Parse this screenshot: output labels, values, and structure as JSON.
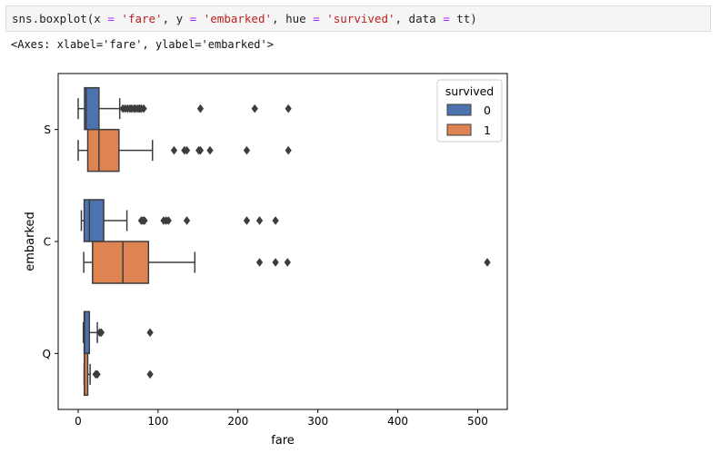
{
  "code_cell": {
    "tokens": [
      {
        "text": "sns.boxplot(x ",
        "cls": ""
      },
      {
        "text": "=",
        "cls": "op"
      },
      {
        "text": " ",
        "cls": ""
      },
      {
        "text": "'fare'",
        "cls": "str"
      },
      {
        "text": ", y ",
        "cls": ""
      },
      {
        "text": "=",
        "cls": "op"
      },
      {
        "text": " ",
        "cls": ""
      },
      {
        "text": "'embarked'",
        "cls": "str"
      },
      {
        "text": ", hue ",
        "cls": ""
      },
      {
        "text": "=",
        "cls": "op"
      },
      {
        "text": " ",
        "cls": ""
      },
      {
        "text": "'survived'",
        "cls": "str"
      },
      {
        "text": ", data ",
        "cls": ""
      },
      {
        "text": "=",
        "cls": "op"
      },
      {
        "text": " tt)",
        "cls": ""
      }
    ]
  },
  "output_text": "<Axes: xlabel='fare', ylabel='embarked'>",
  "chart_data": {
    "type": "boxplot",
    "orientation": "horizontal",
    "xlabel": "fare",
    "ylabel": "embarked",
    "xlim": [
      -25,
      537
    ],
    "xticks": [
      0,
      100,
      200,
      300,
      400,
      500
    ],
    "categories": [
      "S",
      "C",
      "Q"
    ],
    "legend": {
      "title": "survived",
      "position": "top-right"
    },
    "series": [
      {
        "name": "0",
        "color": "#4c72b0",
        "boxes": [
          {
            "category": "S",
            "whisker_low": 0,
            "q1": 8,
            "median": 10,
            "q3": 26,
            "whisker_high": 52,
            "outliers": [
              56,
              59,
              62,
              65,
              67,
              70,
              72,
              75,
              77,
              79,
              82,
              153,
              221,
              263
            ]
          },
          {
            "category": "C",
            "whisker_low": 4,
            "q1": 7.5,
            "median": 14,
            "q3": 32,
            "whisker_high": 61,
            "outliers": [
              79,
              81,
              83,
              107,
              110,
              113,
              136,
              211,
              227,
              247
            ]
          },
          {
            "category": "Q",
            "whisker_low": 6.5,
            "q1": 7.5,
            "median": 8,
            "q3": 14,
            "whisker_high": 24,
            "outliers": [
              27,
              29,
              90
            ]
          }
        ]
      },
      {
        "name": "1",
        "color": "#dd8452",
        "boxes": [
          {
            "category": "S",
            "whisker_low": 0,
            "q1": 12,
            "median": 26,
            "q3": 51,
            "whisker_high": 93,
            "outliers": [
              120,
              133,
              136,
              151,
              153,
              165,
              211,
              263
            ]
          },
          {
            "category": "C",
            "whisker_low": 7,
            "q1": 18,
            "median": 56,
            "q3": 88,
            "whisker_high": 146,
            "outliers": [
              227,
              247,
              262,
              512
            ]
          },
          {
            "category": "Q",
            "whisker_low": 7.5,
            "q1": 7.7,
            "median": 7.8,
            "q3": 12,
            "whisker_high": 15,
            "outliers": [
              22,
              24,
              90
            ]
          }
        ]
      }
    ]
  }
}
